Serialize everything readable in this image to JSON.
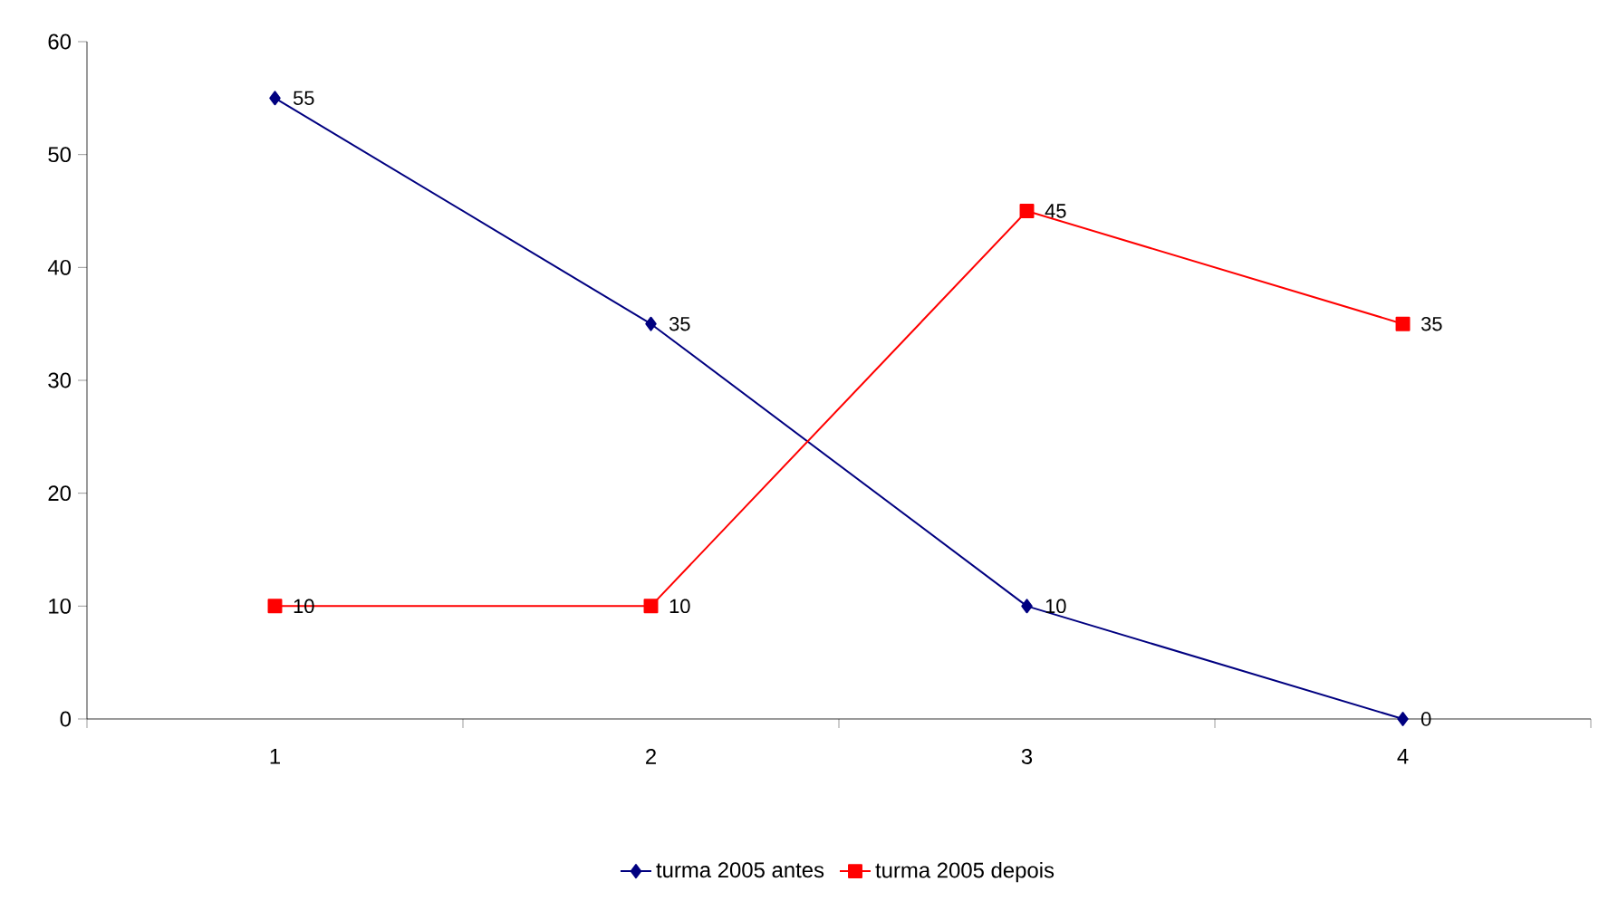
{
  "chart_data": {
    "type": "line",
    "categories": [
      "1",
      "2",
      "3",
      "4"
    ],
    "series": [
      {
        "name": "turma 2005 antes",
        "color": "#000080",
        "marker": "diamond",
        "values": [
          55,
          35,
          10,
          0
        ]
      },
      {
        "name": "turma 2005 depois",
        "color": "#ff0000",
        "marker": "square",
        "values": [
          10,
          10,
          45,
          35
        ]
      }
    ],
    "ylim": [
      0,
      60
    ],
    "yticks": [
      0,
      10,
      20,
      30,
      40,
      50,
      60
    ],
    "grid": false,
    "legend": "bottom",
    "data_labels": true,
    "line_style": "solid"
  }
}
